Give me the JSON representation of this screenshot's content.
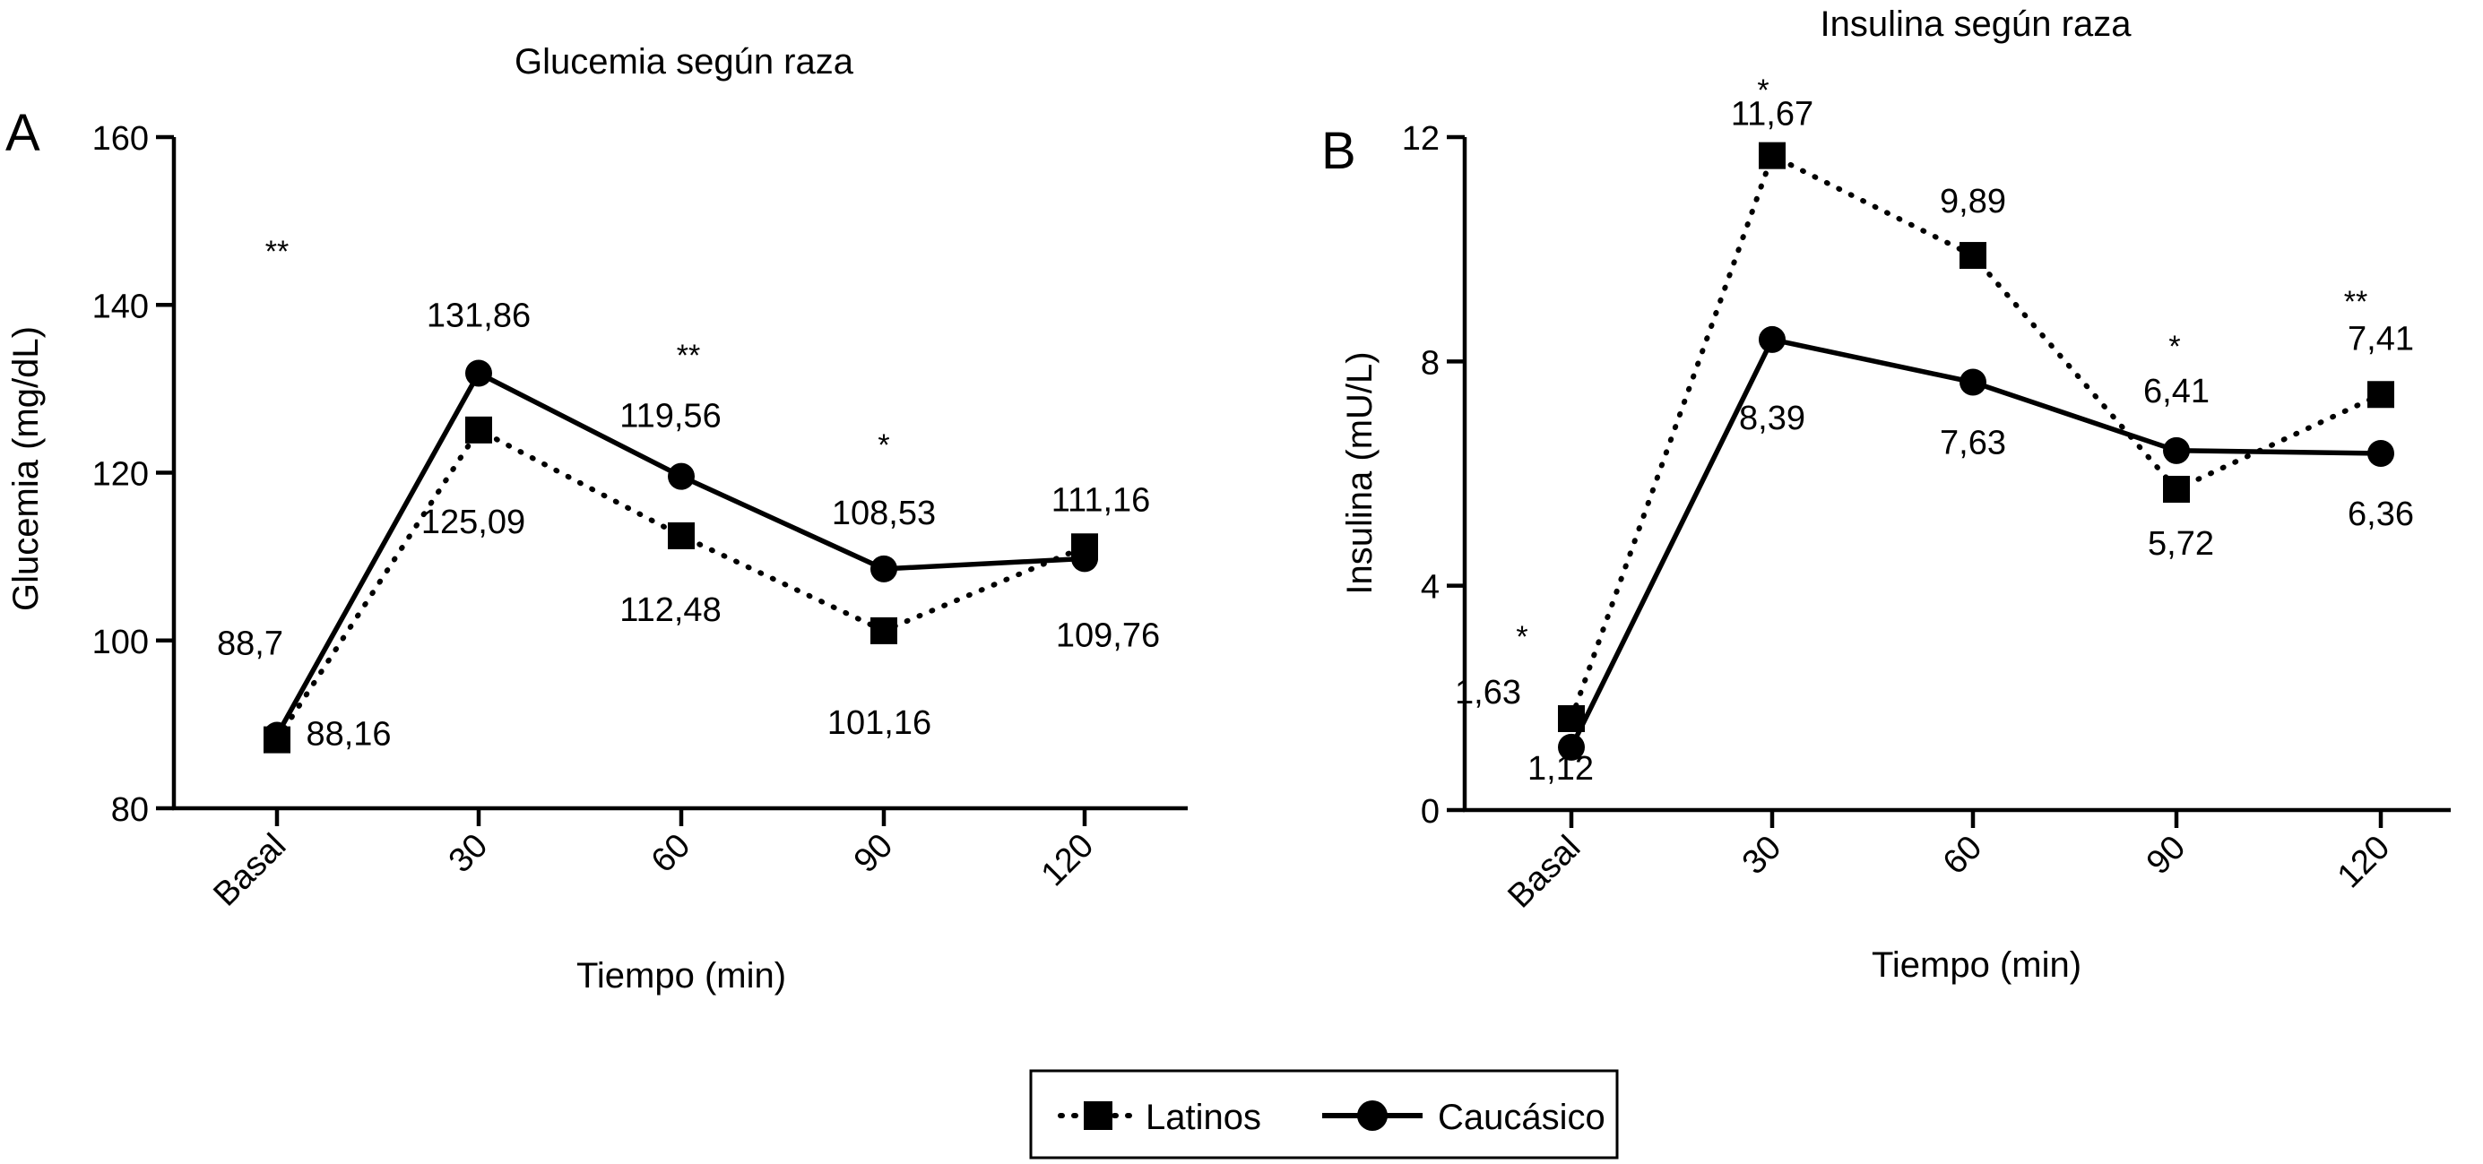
{
  "chart_data": [
    {
      "type": "line",
      "panel_letter": "A",
      "title": "Glucemia según raza",
      "xlabel": "Tiempo (min)",
      "ylabel": "Glucemia (mg/dL)",
      "categories": [
        "Basal",
        "30",
        "60",
        "90",
        "120"
      ],
      "ylim": [
        80,
        160
      ],
      "yticks": [
        80,
        100,
        120,
        140,
        160
      ],
      "grid": false,
      "series": [
        {
          "name": "Latinos",
          "marker": "square",
          "line": "dotted",
          "values": [
            88.16,
            125.09,
            112.48,
            101.16,
            111.16
          ],
          "labels": [
            "88,16",
            "125,09",
            "112,48",
            "101,16",
            "111,16"
          ]
        },
        {
          "name": "Caucásico",
          "marker": "circle",
          "line": "solid",
          "values": [
            88.7,
            131.86,
            119.56,
            108.53,
            109.76
          ],
          "labels": [
            "88,7",
            "131,86",
            "119,56",
            "108,53",
            "109,76"
          ]
        }
      ],
      "significance": [
        "",
        "**",
        "**",
        "*",
        ""
      ]
    },
    {
      "type": "line",
      "panel_letter": "B",
      "title": "Insulina según raza",
      "xlabel": "Tiempo (min)",
      "ylabel": "Insulina (mU/L)",
      "categories": [
        "Basal",
        "30",
        "60",
        "90",
        "120"
      ],
      "ylim": [
        0,
        12
      ],
      "yticks": [
        0,
        4,
        8,
        12
      ],
      "grid": false,
      "series": [
        {
          "name": "Latinos",
          "marker": "square",
          "line": "dotted",
          "values": [
            1.63,
            11.67,
            9.89,
            5.72,
            7.41
          ],
          "labels": [
            "1,63",
            "11,67",
            "9,89",
            "5,72",
            "7,41"
          ]
        },
        {
          "name": "Caucásico",
          "marker": "circle",
          "line": "solid",
          "values": [
            1.12,
            8.39,
            7.63,
            6.41,
            6.36
          ],
          "labels": [
            "1,12",
            "8,39",
            "7,63",
            "6,41",
            "6,36"
          ]
        }
      ],
      "significance": [
        "*",
        "*",
        "",
        "*",
        "**"
      ]
    }
  ],
  "legend": {
    "placement": "bottom-center",
    "items": [
      {
        "label": "Latinos",
        "marker": "square",
        "line": "dotted"
      },
      {
        "label": "Caucásico",
        "marker": "circle",
        "line": "solid"
      }
    ]
  },
  "colors": {
    "line": "#000000",
    "background": "#ffffff"
  }
}
